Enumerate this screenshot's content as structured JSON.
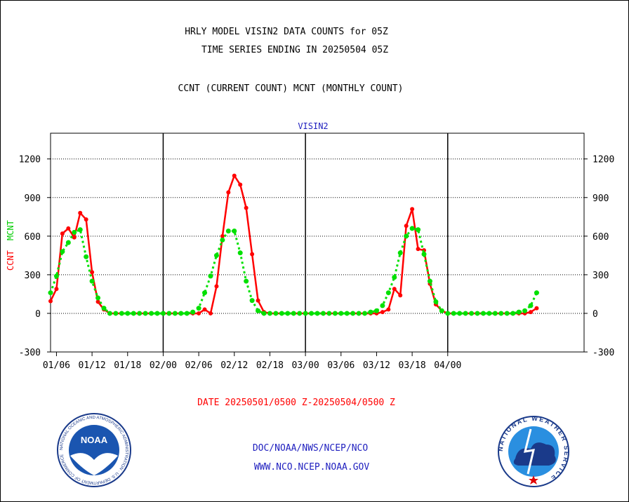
{
  "header": {
    "line1": "HRLY MODEL VISIN2 DATA COUNTS for 05Z",
    "line2": "TIME SERIES ENDING IN 20250504 05Z",
    "line3": "CCNT (CURRENT COUNT) MCNT (MONTHLY COUNT)"
  },
  "footer": {
    "org": "DOC/NOAA/NWS/NCEP/NCO",
    "url": "WWW.NCO.NCEP.NOAA.GOV"
  },
  "logos": {
    "left": "NOAA",
    "left_ring": "NATIONAL OCEANIC AND ATMOSPHERIC ADMINISTRATION · U.S. DEPARTMENT OF COMMERCE",
    "right_ring": "NATIONAL WEATHER SERVICE"
  },
  "colors": {
    "ccnt": "#ff0000",
    "mcnt": "#00e000",
    "footer": "#1f1fbf",
    "axis": "#000000"
  },
  "chart_data": {
    "type": "line",
    "title": "VISIN2",
    "xlabel": "DATE 20250501/0500 Z-20250504/0500 Z",
    "ylabel_left": [
      "CCNT",
      "MCNT"
    ],
    "ylim": [
      -300,
      1400
    ],
    "yticks": [
      "1200",
      "900",
      "600",
      "300",
      "0",
      "-300"
    ],
    "xticks": [
      "01/06",
      "01/12",
      "01/18",
      "02/00",
      "02/06",
      "02/12",
      "02/18",
      "03/00",
      "03/06",
      "03/12",
      "03/18",
      "04/00"
    ],
    "grid": true,
    "x_start_hour": 5,
    "series": [
      {
        "name": "CCNT",
        "color": "#ff0000",
        "values": [
          95,
          190,
          620,
          660,
          590,
          780,
          730,
          320,
          90,
          30,
          0,
          0,
          0,
          0,
          0,
          0,
          0,
          0,
          0,
          0,
          0,
          0,
          0,
          0,
          0,
          0,
          30,
          0,
          210,
          600,
          940,
          1070,
          1000,
          820,
          460,
          100,
          10,
          0,
          0,
          0,
          0,
          0,
          0,
          0,
          0,
          0,
          0,
          0,
          0,
          0,
          0,
          0,
          0,
          0,
          0,
          0,
          10,
          30,
          190,
          140,
          680,
          810,
          500,
          490,
          230,
          70,
          20,
          0,
          0,
          0,
          0,
          0,
          0,
          0,
          0,
          0,
          0,
          0,
          0,
          0,
          0,
          10,
          40
        ]
      },
      {
        "name": "MCNT",
        "color": "#00e000",
        "values": [
          160,
          290,
          480,
          550,
          630,
          650,
          440,
          250,
          120,
          40,
          0,
          0,
          0,
          0,
          0,
          0,
          0,
          0,
          0,
          0,
          0,
          0,
          0,
          0,
          10,
          40,
          160,
          290,
          450,
          570,
          640,
          640,
          470,
          250,
          100,
          20,
          0,
          0,
          0,
          0,
          0,
          0,
          0,
          0,
          0,
          0,
          0,
          0,
          0,
          0,
          0,
          0,
          0,
          0,
          10,
          20,
          60,
          160,
          280,
          470,
          600,
          660,
          650,
          460,
          250,
          90,
          20,
          0,
          0,
          0,
          0,
          0,
          0,
          0,
          0,
          0,
          0,
          0,
          0,
          10,
          20,
          60,
          160
        ]
      }
    ]
  }
}
